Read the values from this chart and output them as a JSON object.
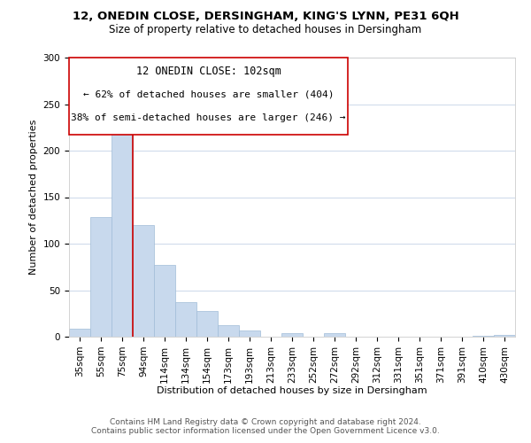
{
  "title": "12, ONEDIN CLOSE, DERSINGHAM, KING'S LYNN, PE31 6QH",
  "subtitle": "Size of property relative to detached houses in Dersingham",
  "xlabel": "Distribution of detached houses by size in Dersingham",
  "ylabel": "Number of detached properties",
  "bar_labels": [
    "35sqm",
    "55sqm",
    "75sqm",
    "94sqm",
    "114sqm",
    "134sqm",
    "154sqm",
    "173sqm",
    "193sqm",
    "213sqm",
    "233sqm",
    "252sqm",
    "272sqm",
    "292sqm",
    "312sqm",
    "331sqm",
    "351sqm",
    "371sqm",
    "391sqm",
    "410sqm",
    "430sqm"
  ],
  "bar_values": [
    9,
    129,
    221,
    120,
    77,
    37,
    28,
    12,
    7,
    0,
    4,
    0,
    4,
    0,
    0,
    0,
    0,
    0,
    0,
    1,
    2
  ],
  "bar_color": "#c8d9ed",
  "bar_edge_color": "#a0bcd8",
  "vline_color": "#cc0000",
  "annotation_title": "12 ONEDIN CLOSE: 102sqm",
  "annotation_line1": "← 62% of detached houses are smaller (404)",
  "annotation_line2": "38% of semi-detached houses are larger (246) →",
  "annotation_box_color": "#ffffff",
  "annotation_box_edge": "#cc0000",
  "ylim": [
    0,
    300
  ],
  "yticks": [
    0,
    50,
    100,
    150,
    200,
    250,
    300
  ],
  "grid_color": "#ccd8ea",
  "footer_line1": "Contains HM Land Registry data © Crown copyright and database right 2024.",
  "footer_line2": "Contains public sector information licensed under the Open Government Licence v3.0.",
  "title_fontsize": 9.5,
  "subtitle_fontsize": 8.5,
  "annotation_title_fontsize": 8.5,
  "annotation_text_fontsize": 8,
  "footer_fontsize": 6.5,
  "xlabel_fontsize": 8,
  "ylabel_fontsize": 8,
  "tick_fontsize": 7.5
}
